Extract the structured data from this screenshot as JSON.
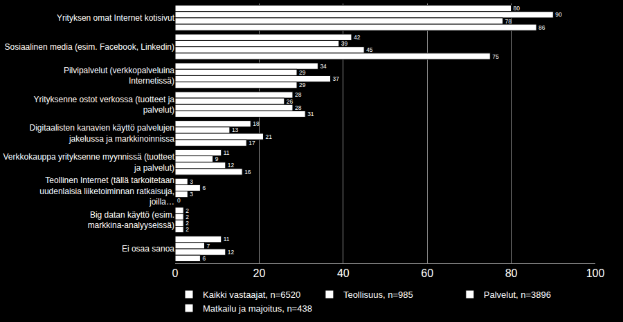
{
  "chart_data": {
    "type": "bar",
    "orientation": "horizontal",
    "categories": [
      "Yrityksen omat Internet kotisivut",
      "Sosiaalinen media (esim. Facebook, Linkedin)",
      "Pilvipalvelut  (verkkopalveluina Internetissä)",
      "Yrityksenne ostot verkossa (tuotteet ja palvelut)",
      "Digitaalisten kanavien käyttö palvelujen jakelussa ja markkinoinnissa",
      "Verkkokauppa yrityksenne myynnissä (tuotteet ja palvelut)",
      "Teollinen Internet (tällä tarkoitetaan uudenlaisia liiketoiminnan ratkaisuja, joilla…",
      "Big datan käyttö (esim. markkina-analyyseissä)",
      "Ei osaa sanoa"
    ],
    "series": [
      {
        "name": "Kaikki vastaajat, n=6520",
        "color": "#ffffff",
        "values": [
          80,
          42,
          34,
          28,
          18,
          11,
          3,
          2,
          11
        ]
      },
      {
        "name": "Teollisuus, n=985",
        "color": "#ffffff",
        "values": [
          90,
          39,
          29,
          26,
          13,
          9,
          6,
          2,
          7
        ]
      },
      {
        "name": "Palvelut, n=3896",
        "color": "#ffffff",
        "values": [
          78,
          45,
          37,
          28,
          21,
          12,
          3,
          2,
          12
        ]
      },
      {
        "name": "Matkailu ja majoitus, n=438",
        "color": "#ffffff",
        "values": [
          86,
          75,
          29,
          31,
          17,
          16,
          0,
          2,
          6
        ]
      }
    ],
    "xlim": [
      0,
      100
    ],
    "xticks": [
      0,
      20,
      40,
      60,
      80,
      100
    ],
    "grid": true,
    "data_labels": true,
    "legend": "bottom"
  }
}
